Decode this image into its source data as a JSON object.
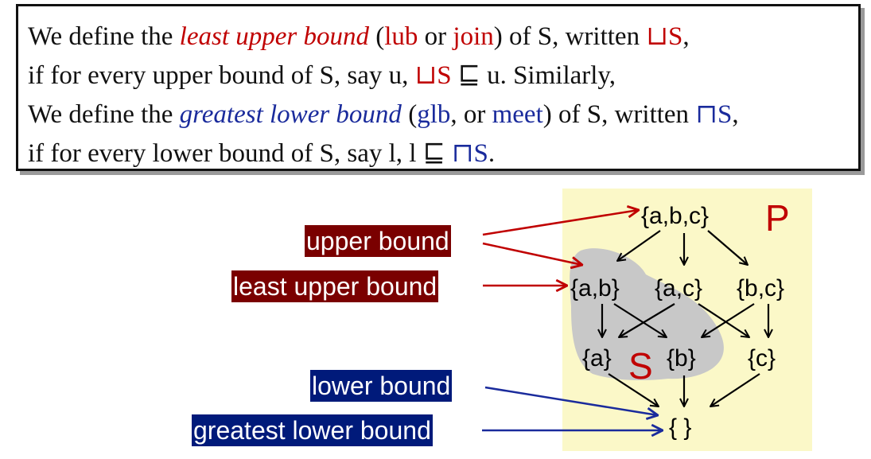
{
  "definition": {
    "line1": {
      "a": "We define the ",
      "term": "least upper bound",
      "b": " (",
      "abbr1": "lub",
      "c": " or ",
      "abbr2": "join",
      "d": ") of S, written ",
      "sym": "⊔S",
      "e": ","
    },
    "line2": {
      "a": "if for every upper bound of S, say u, ",
      "sym": "⊔S",
      "b": " ⊑ u. Similarly,"
    },
    "line3": {
      "a": "We define the ",
      "term": "greatest lower bound",
      "b": " (",
      "abbr1": "glb",
      "c": ", or ",
      "abbr2": "meet",
      "d": ") of S, written ",
      "sym": "⊓S",
      "e": ","
    },
    "line4": {
      "a": "if for every lower bound of S, say l, l ⊑ ",
      "sym": "⊓S",
      "b": "."
    }
  },
  "labels": {
    "upper_bound": "upper bound",
    "least_upper_bound": "least upper bound",
    "lower_bound": "lower bound",
    "greatest_lower_bound": "greatest lower bound"
  },
  "lattice": {
    "set_label": "P",
    "subset_label": "S",
    "nodes": {
      "abc": "{a,b,c}",
      "ab": "{a,b}",
      "ac": "{a,c}",
      "bc": "{b,c}",
      "a": "{a}",
      "b": "{b}",
      "c": "{c}",
      "empty": "{ }"
    }
  },
  "colors": {
    "red": "#c00000",
    "blue": "#1a2b9c",
    "maroon": "#7a0000",
    "navy": "#001a7a",
    "lattice_bg": "#fbf8c8",
    "subset_blob": "#c8c8c8"
  }
}
